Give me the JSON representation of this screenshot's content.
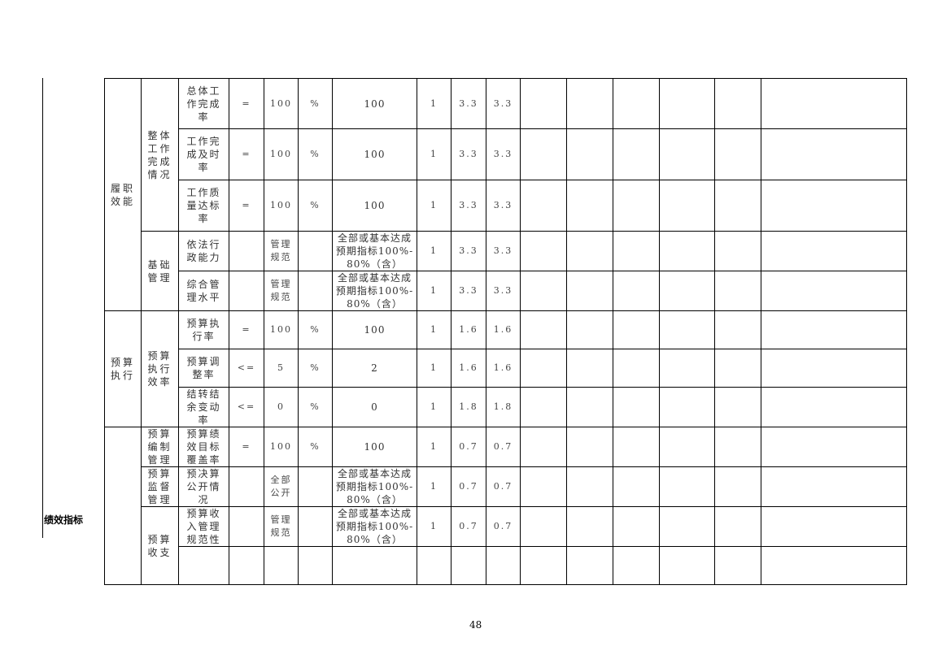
{
  "side_label": "绩效指标",
  "page_number": "48",
  "rows": [
    {
      "l1": "履职效能",
      "l2": "整体工作完成情况",
      "indicator": "总体工作完成率",
      "op": "=",
      "target": "100",
      "unit": "%",
      "actual": "100",
      "weight": "1",
      "score_a": "3.3",
      "score_b": "3.3"
    },
    {
      "indicator": "工作完成及时率",
      "op": "=",
      "target": "100",
      "unit": "%",
      "actual": "100",
      "weight": "1",
      "score_a": "3.3",
      "score_b": "3.3"
    },
    {
      "indicator": "工作质量达标率",
      "op": "=",
      "target": "100",
      "unit": "%",
      "actual": "100",
      "weight": "1",
      "score_a": "3.3",
      "score_b": "3.3"
    },
    {
      "l2": "基础管理",
      "indicator": "依法行政能力",
      "op": "",
      "target": "管理规范",
      "unit": "",
      "actual": "全部或基本达成预期指标100%-80%（含）",
      "weight": "1",
      "score_a": "3.3",
      "score_b": "3.3"
    },
    {
      "indicator": "综合管理水平",
      "op": "",
      "target": "管理规范",
      "unit": "",
      "actual": "全部或基本达成预期指标100%-80%（含）",
      "weight": "1",
      "score_a": "3.3",
      "score_b": "3.3"
    },
    {
      "l1": "预算执行",
      "l2": "预算执行效率",
      "indicator": "预算执行率",
      "op": "=",
      "target": "100",
      "unit": "%",
      "actual": "100",
      "weight": "1",
      "score_a": "1.6",
      "score_b": "1.6"
    },
    {
      "indicator": "预算调整率",
      "op": "<=",
      "target": "5",
      "unit": "%",
      "actual": "2",
      "weight": "1",
      "score_a": "1.6",
      "score_b": "1.6"
    },
    {
      "indicator": "结转结余变动率",
      "op": "<=",
      "target": "0",
      "unit": "%",
      "actual": "0",
      "weight": "1",
      "score_a": "1.8",
      "score_b": "1.8"
    },
    {
      "l1": "",
      "l2": "预算编制管理",
      "indicator": "预算绩效目标覆盖率",
      "op": "=",
      "target": "100",
      "unit": "%",
      "actual": "100",
      "weight": "1",
      "score_a": "0.7",
      "score_b": "0.7"
    },
    {
      "l2": "预算监督管理",
      "indicator": "预决算公开情况",
      "op": "",
      "target": "全部公开",
      "unit": "",
      "actual": "全部或基本达成预期指标100%-80%（含）",
      "weight": "1",
      "score_a": "0.7",
      "score_b": "0.7"
    },
    {
      "l2": "预算收支",
      "indicator": "预算收入管理规范性",
      "op": "",
      "target": "管理规范",
      "unit": "",
      "actual": "全部或基本达成预期指标100%-80%（含）",
      "weight": "1",
      "score_a": "0.7",
      "score_b": "0.7"
    },
    {
      "indicator": "",
      "op": "",
      "target": "",
      "unit": "",
      "actual": "",
      "weight": "",
      "score_a": "",
      "score_b": ""
    }
  ]
}
